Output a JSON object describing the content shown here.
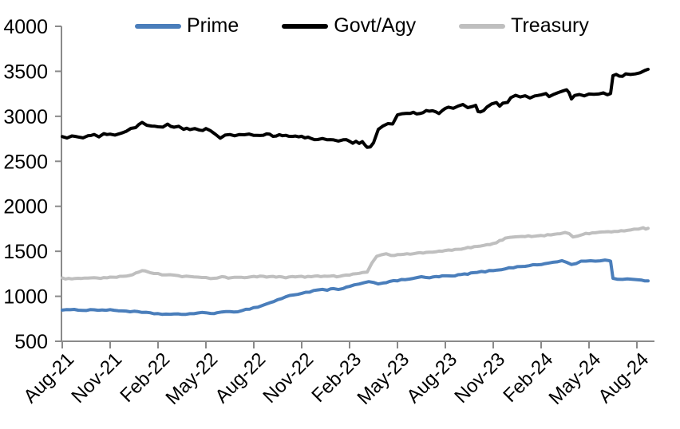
{
  "chart_data": {
    "type": "line",
    "title": "",
    "legend": {
      "position": "top",
      "items": [
        "Prime",
        "Govt/Agy",
        "Treasury"
      ]
    },
    "grid": false,
    "x_axis": {
      "tick_labels": [
        "Aug-21",
        "Nov-21",
        "Feb-22",
        "May-22",
        "Aug-22",
        "Nov-22",
        "Feb-23",
        "May-23",
        "Aug-23",
        "Nov-23",
        "Feb-24",
        "May-24",
        "Aug-24"
      ],
      "months_per_tick": 3,
      "range_months": 36.7
    },
    "y_axis": {
      "min": 500,
      "max": 4000,
      "ticks": [
        500,
        1000,
        1500,
        2000,
        2500,
        3000,
        3500,
        4000
      ]
    },
    "series": [
      {
        "name": "Prime",
        "color": "#4A7EBB",
        "noise": 6,
        "points": [
          [
            0,
            852
          ],
          [
            0.5,
            846
          ],
          [
            1,
            851
          ],
          [
            1.5,
            846
          ],
          [
            2,
            851
          ],
          [
            2.5,
            848
          ],
          [
            3,
            846
          ],
          [
            3.5,
            842
          ],
          [
            4,
            836
          ],
          [
            4.5,
            829
          ],
          [
            5,
            821
          ],
          [
            5.5,
            812
          ],
          [
            6,
            806
          ],
          [
            6.5,
            801
          ],
          [
            7,
            798
          ],
          [
            7.5,
            801
          ],
          [
            8,
            806
          ],
          [
            8.5,
            812
          ],
          [
            9,
            818
          ],
          [
            9.3,
            810
          ],
          [
            9.7,
            816
          ],
          [
            10,
            821
          ],
          [
            10.5,
            827
          ],
          [
            11,
            833
          ],
          [
            11.5,
            852
          ],
          [
            12,
            872
          ],
          [
            12.5,
            895
          ],
          [
            13,
            928
          ],
          [
            13.5,
            960
          ],
          [
            14,
            995
          ],
          [
            14.5,
            1015
          ],
          [
            15,
            1035
          ],
          [
            15.5,
            1050
          ],
          [
            16,
            1068
          ],
          [
            16.3,
            1075
          ],
          [
            16.6,
            1068
          ],
          [
            17,
            1085
          ],
          [
            17.3,
            1072
          ],
          [
            17.6,
            1090
          ],
          [
            18,
            1108
          ],
          [
            18.3,
            1122
          ],
          [
            18.6,
            1132
          ],
          [
            18.9,
            1150
          ],
          [
            19.2,
            1168
          ],
          [
            19.5,
            1152
          ],
          [
            19.8,
            1140
          ],
          [
            20.1,
            1150
          ],
          [
            20.5,
            1162
          ],
          [
            21,
            1174
          ],
          [
            21.5,
            1188
          ],
          [
            22,
            1202
          ],
          [
            22.5,
            1212
          ],
          [
            23,
            1206
          ],
          [
            23.4,
            1216
          ],
          [
            23.8,
            1224
          ],
          [
            24.1,
            1228
          ],
          [
            24.4,
            1220
          ],
          [
            24.8,
            1236
          ],
          [
            25.2,
            1245
          ],
          [
            25.6,
            1255
          ],
          [
            26,
            1266
          ],
          [
            26.5,
            1276
          ],
          [
            27,
            1288
          ],
          [
            27.5,
            1300
          ],
          [
            28,
            1314
          ],
          [
            28.5,
            1326
          ],
          [
            29,
            1338
          ],
          [
            29.5,
            1346
          ],
          [
            30,
            1354
          ],
          [
            30.5,
            1370
          ],
          [
            31,
            1386
          ],
          [
            31.3,
            1392
          ],
          [
            31.6,
            1378
          ],
          [
            31.9,
            1352
          ],
          [
            32.2,
            1364
          ],
          [
            32.5,
            1386
          ],
          [
            32.8,
            1392
          ],
          [
            33.1,
            1396
          ],
          [
            33.4,
            1390
          ],
          [
            33.7,
            1398
          ],
          [
            34,
            1401
          ],
          [
            34.2,
            1397
          ],
          [
            34.35,
            1394
          ],
          [
            34.5,
            1196
          ],
          [
            34.8,
            1192
          ],
          [
            35.1,
            1190
          ],
          [
            35.4,
            1195
          ],
          [
            35.7,
            1186
          ],
          [
            36,
            1182
          ],
          [
            36.3,
            1174
          ],
          [
            36.7,
            1172
          ]
        ]
      },
      {
        "name": "Govt/Agy",
        "color": "#000000",
        "noise": 13,
        "points": [
          [
            0,
            2778
          ],
          [
            0.3,
            2768
          ],
          [
            0.6,
            2780
          ],
          [
            1,
            2772
          ],
          [
            1.3,
            2758
          ],
          [
            1.6,
            2775
          ],
          [
            2,
            2788
          ],
          [
            2.3,
            2780
          ],
          [
            2.6,
            2795
          ],
          [
            3,
            2812
          ],
          [
            3.3,
            2802
          ],
          [
            3.6,
            2818
          ],
          [
            4,
            2835
          ],
          [
            4.3,
            2855
          ],
          [
            4.6,
            2875
          ],
          [
            4.8,
            2912
          ],
          [
            5,
            2930
          ],
          [
            5.3,
            2908
          ],
          [
            5.6,
            2882
          ],
          [
            6,
            2888
          ],
          [
            6.3,
            2872
          ],
          [
            6.6,
            2902
          ],
          [
            7,
            2878
          ],
          [
            7.3,
            2890
          ],
          [
            7.6,
            2868
          ],
          [
            8,
            2852
          ],
          [
            8.3,
            2862
          ],
          [
            8.6,
            2845
          ],
          [
            9,
            2858
          ],
          [
            9.3,
            2832
          ],
          [
            9.6,
            2795
          ],
          [
            9.9,
            2752
          ],
          [
            10.2,
            2782
          ],
          [
            10.5,
            2802
          ],
          [
            10.8,
            2788
          ],
          [
            11.1,
            2798
          ],
          [
            11.4,
            2788
          ],
          [
            11.7,
            2802
          ],
          [
            12,
            2795
          ],
          [
            12.4,
            2785
          ],
          [
            12.8,
            2795
          ],
          [
            13.2,
            2782
          ],
          [
            13.6,
            2788
          ],
          [
            14,
            2778
          ],
          [
            14.4,
            2785
          ],
          [
            14.8,
            2772
          ],
          [
            15.2,
            2765
          ],
          [
            15.6,
            2752
          ],
          [
            16,
            2742
          ],
          [
            16.3,
            2755
          ],
          [
            16.6,
            2738
          ],
          [
            17,
            2748
          ],
          [
            17.3,
            2728
          ],
          [
            17.6,
            2742
          ],
          [
            18,
            2718
          ],
          [
            18.2,
            2698
          ],
          [
            18.4,
            2722
          ],
          [
            18.6,
            2705
          ],
          [
            18.8,
            2712
          ],
          [
            19,
            2672
          ],
          [
            19.1,
            2655
          ],
          [
            19.3,
            2660
          ],
          [
            19.5,
            2698
          ],
          [
            19.8,
            2858
          ],
          [
            20.1,
            2890
          ],
          [
            20.4,
            2920
          ],
          [
            20.7,
            2905
          ],
          [
            21,
            3008
          ],
          [
            21.3,
            3038
          ],
          [
            21.6,
            3025
          ],
          [
            22,
            3045
          ],
          [
            22.4,
            3030
          ],
          [
            22.8,
            3052
          ],
          [
            23.2,
            3060
          ],
          [
            23.6,
            3042
          ],
          [
            24,
            3085
          ],
          [
            24.2,
            3110
          ],
          [
            24.5,
            3098
          ],
          [
            24.8,
            3115
          ],
          [
            25.1,
            3125
          ],
          [
            25.4,
            3098
          ],
          [
            25.7,
            3112
          ],
          [
            25.9,
            3118
          ],
          [
            26.05,
            3055
          ],
          [
            26.2,
            3042
          ],
          [
            26.4,
            3070
          ],
          [
            26.6,
            3095
          ],
          [
            26.9,
            3130
          ],
          [
            27.2,
            3148
          ],
          [
            27.4,
            3118
          ],
          [
            27.6,
            3140
          ],
          [
            27.9,
            3152
          ],
          [
            28.1,
            3215
          ],
          [
            28.4,
            3240
          ],
          [
            28.7,
            3212
          ],
          [
            29,
            3222
          ],
          [
            29.3,
            3196
          ],
          [
            29.6,
            3222
          ],
          [
            30,
            3235
          ],
          [
            30.3,
            3256
          ],
          [
            30.5,
            3216
          ],
          [
            30.8,
            3242
          ],
          [
            31.1,
            3258
          ],
          [
            31.4,
            3285
          ],
          [
            31.6,
            3298
          ],
          [
            31.75,
            3262
          ],
          [
            31.9,
            3190
          ],
          [
            32.1,
            3225
          ],
          [
            32.4,
            3240
          ],
          [
            32.7,
            3228
          ],
          [
            33,
            3238
          ],
          [
            33.3,
            3250
          ],
          [
            33.6,
            3242
          ],
          [
            33.9,
            3252
          ],
          [
            34.15,
            3246
          ],
          [
            34.35,
            3252
          ],
          [
            34.5,
            3455
          ],
          [
            34.7,
            3472
          ],
          [
            34.9,
            3448
          ],
          [
            35.1,
            3442
          ],
          [
            35.3,
            3462
          ],
          [
            35.6,
            3468
          ],
          [
            35.9,
            3462
          ],
          [
            36.2,
            3476
          ],
          [
            36.5,
            3508
          ],
          [
            36.7,
            3522
          ]
        ]
      },
      {
        "name": "Treasury",
        "color": "#BFBFBF",
        "noise": 6,
        "points": [
          [
            0,
            1200
          ],
          [
            0.4,
            1194
          ],
          [
            0.8,
            1199
          ],
          [
            1.2,
            1194
          ],
          [
            1.6,
            1199
          ],
          [
            2,
            1204
          ],
          [
            2.4,
            1199
          ],
          [
            2.8,
            1206
          ],
          [
            3.2,
            1210
          ],
          [
            3.6,
            1216
          ],
          [
            4,
            1222
          ],
          [
            4.4,
            1238
          ],
          [
            4.8,
            1272
          ],
          [
            5,
            1288
          ],
          [
            5.2,
            1278
          ],
          [
            5.5,
            1262
          ],
          [
            6,
            1248
          ],
          [
            6.5,
            1238
          ],
          [
            7,
            1230
          ],
          [
            7.5,
            1222
          ],
          [
            8,
            1216
          ],
          [
            8.5,
            1212
          ],
          [
            9,
            1208
          ],
          [
            9.3,
            1200
          ],
          [
            9.7,
            1208
          ],
          [
            10,
            1214
          ],
          [
            10.4,
            1206
          ],
          [
            10.8,
            1212
          ],
          [
            11.2,
            1206
          ],
          [
            11.6,
            1212
          ],
          [
            12,
            1218
          ],
          [
            12.4,
            1222
          ],
          [
            12.8,
            1214
          ],
          [
            13.2,
            1220
          ],
          [
            13.6,
            1214
          ],
          [
            14,
            1208
          ],
          [
            14.4,
            1215
          ],
          [
            14.8,
            1220
          ],
          [
            15.2,
            1214
          ],
          [
            15.6,
            1220
          ],
          [
            16,
            1225
          ],
          [
            16.4,
            1218
          ],
          [
            16.8,
            1226
          ],
          [
            17.2,
            1220
          ],
          [
            17.6,
            1228
          ],
          [
            18,
            1238
          ],
          [
            18.4,
            1250
          ],
          [
            18.8,
            1260
          ],
          [
            19.1,
            1268
          ],
          [
            19.4,
            1372
          ],
          [
            19.7,
            1440
          ],
          [
            20,
            1462
          ],
          [
            20.3,
            1470
          ],
          [
            20.6,
            1456
          ],
          [
            21,
            1462
          ],
          [
            21.4,
            1472
          ],
          [
            21.8,
            1468
          ],
          [
            22.2,
            1478
          ],
          [
            22.6,
            1482
          ],
          [
            23,
            1490
          ],
          [
            23.4,
            1495
          ],
          [
            23.8,
            1502
          ],
          [
            24.2,
            1510
          ],
          [
            24.6,
            1518
          ],
          [
            25,
            1528
          ],
          [
            25.4,
            1538
          ],
          [
            25.8,
            1548
          ],
          [
            26.2,
            1560
          ],
          [
            26.6,
            1572
          ],
          [
            27,
            1585
          ],
          [
            27.4,
            1615
          ],
          [
            27.75,
            1645
          ],
          [
            28,
            1652
          ],
          [
            28.4,
            1658
          ],
          [
            28.8,
            1662
          ],
          [
            29.2,
            1668
          ],
          [
            29.6,
            1662
          ],
          [
            30,
            1672
          ],
          [
            30.4,
            1682
          ],
          [
            30.8,
            1692
          ],
          [
            31.2,
            1700
          ],
          [
            31.5,
            1706
          ],
          [
            31.75,
            1695
          ],
          [
            32,
            1658
          ],
          [
            32.3,
            1672
          ],
          [
            32.6,
            1690
          ],
          [
            33,
            1698
          ],
          [
            33.4,
            1705
          ],
          [
            33.8,
            1710
          ],
          [
            34.2,
            1714
          ],
          [
            34.6,
            1718
          ],
          [
            35,
            1726
          ],
          [
            35.4,
            1736
          ],
          [
            35.8,
            1744
          ],
          [
            36.1,
            1752
          ],
          [
            36.4,
            1760
          ],
          [
            36.55,
            1748
          ],
          [
            36.7,
            1756
          ]
        ]
      }
    ]
  },
  "styles": {
    "axis_color": "#8A8A8A",
    "text_color": "#000000",
    "background": "#FFFFFF"
  }
}
